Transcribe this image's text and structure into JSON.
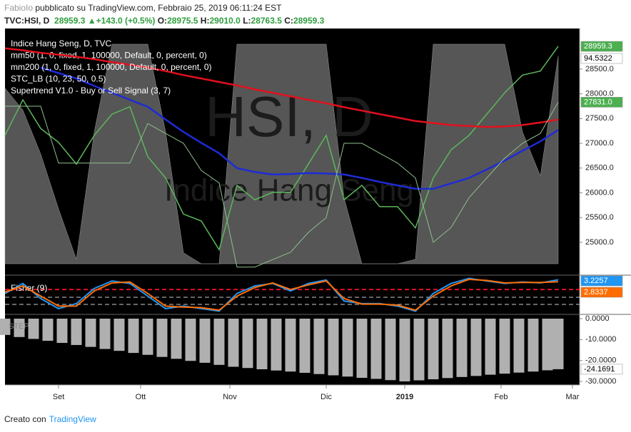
{
  "header": {
    "author": "FabioIo",
    "published": "pubblicato su TradingView.com, Febbraio 25, 2019 06:11:24 EST",
    "symbol": "TVC:HSI, D",
    "last": "28959.3",
    "arrow": "▲",
    "change": "+143.0 (+0.5%)",
    "open_label": "O:",
    "open": "28975.5",
    "high_label": "H:",
    "high": "29010.0",
    "low_label": "L:",
    "low": "28763.5",
    "close_label": "C:",
    "close": "28959.3"
  },
  "footer": {
    "text": "Creato con",
    "link": "TradingView"
  },
  "chart_data": [
    {
      "type": "line",
      "watermark": "HSI, D",
      "watermark_subtitle": "Indice Hang Seng",
      "xlim": [
        0,
        161
      ],
      "ylim": [
        24350,
        29320
      ],
      "stc_ylim": [
        0,
        100
      ],
      "yticks": [
        {
          "value": 25000,
          "label": "25000.0"
        },
        {
          "value": 25500,
          "label": "25500.0"
        },
        {
          "value": 26000,
          "label": "26000.0"
        },
        {
          "value": 26500,
          "label": "26500.0"
        },
        {
          "value": 27000,
          "label": "27000.0"
        },
        {
          "value": 27500,
          "label": "27500.0"
        },
        {
          "value": 28000,
          "label": "28000.0"
        },
        {
          "value": 28500,
          "label": "28500.0"
        }
      ],
      "x": [
        0,
        5,
        10,
        15,
        20,
        25,
        30,
        35,
        40,
        45,
        50,
        55,
        60,
        65,
        70,
        75,
        80,
        85,
        90,
        95,
        100,
        105,
        110,
        115,
        120,
        125,
        130,
        135,
        140,
        145,
        150,
        155
      ],
      "series": [
        {
          "name": "Indice Hang Seng, D, TVC",
          "color": "#5cb85c",
          "tag_color": "#4caf50",
          "width": 1.5,
          "values": [
            27160,
            27880,
            27300,
            27020,
            26580,
            27160,
            27590,
            27740,
            26730,
            26300,
            25570,
            25430,
            24850,
            26150,
            25860,
            26010,
            26010,
            26580,
            27160,
            25860,
            26150,
            25720,
            25720,
            25290,
            26300,
            26870,
            27160,
            27590,
            28020,
            28380,
            28460,
            28959.3
          ]
        },
        {
          "name": "mm50 (1, 0, fixed, 1, 100000, Default, 0, percent, 0)",
          "color": "#1e2bd6",
          "width": 2.5,
          "values": [
            null,
            null,
            28530,
            28420,
            28310,
            28160,
            28020,
            27880,
            27740,
            27480,
            27230,
            27010,
            26800,
            26500,
            26420,
            26370,
            26380,
            26400,
            26390,
            26370,
            26300,
            26220,
            26150,
            26080,
            26080,
            26190,
            26300,
            26470,
            26650,
            26850,
            27040,
            27270
          ]
        },
        {
          "name": "mm200 (1, 0, fixed, 1, 100000, Default, 0, percent, 0)",
          "color": "#e3101d",
          "width": 2.5,
          "values": [
            28920,
            28880,
            28830,
            28790,
            28750,
            28700,
            28640,
            28590,
            28530,
            28460,
            28380,
            28310,
            28240,
            28170,
            28090,
            28020,
            27950,
            27880,
            27810,
            27730,
            27660,
            27590,
            27520,
            27450,
            27410,
            27370,
            27350,
            27330,
            27340,
            27370,
            27420,
            27480
          ]
        },
        {
          "name": "STC_LB (10, 23, 50, 0.5)",
          "axis": "stc",
          "color": "#7a7a7a",
          "tag_color": "#ffffff",
          "values": [
            80,
            70,
            50,
            25,
            2,
            60,
            100,
            100,
            100,
            60,
            5,
            0,
            0,
            100,
            100,
            100,
            100,
            100,
            100,
            30,
            0,
            0,
            0,
            2,
            100,
            100,
            100,
            100,
            100,
            60,
            40,
            94.5322
          ]
        },
        {
          "name": "Supertrend V1.0 - Buy or Sell Signal (3, 7)",
          "color": "#8fbf8f",
          "tag_color": "#4caf50",
          "width": 1,
          "values": [
            27750,
            27750,
            27750,
            26600,
            26600,
            26600,
            26600,
            26600,
            27400,
            27200,
            27000,
            26450,
            26200,
            24500,
            24500,
            24650,
            24800,
            25200,
            25500,
            27000,
            27000,
            26800,
            26600,
            26300,
            25000,
            25300,
            25900,
            26300,
            26700,
            27000,
            27200,
            27831
          ],
          "value_labels": [
            null,
            null,
            null,
            null,
            null,
            null,
            null,
            null,
            null,
            null,
            null,
            null,
            null,
            null,
            null,
            null,
            null,
            null,
            null,
            null,
            null,
            null,
            null,
            null,
            null,
            null,
            null,
            null,
            null,
            null,
            null,
            "27831.0"
          ]
        }
      ]
    },
    {
      "type": "line",
      "xlim": [
        0,
        161
      ],
      "ylim": [
        -3.5,
        4
      ],
      "levels": [
        {
          "value": 1.3,
          "color": "#e3101d"
        },
        {
          "value": -0.25,
          "color": "#cccccc"
        },
        {
          "value": -1.66,
          "color": "#cccccc"
        }
      ],
      "x": [
        0,
        5,
        10,
        15,
        20,
        25,
        30,
        35,
        40,
        45,
        50,
        55,
        60,
        65,
        70,
        75,
        80,
        85,
        90,
        95,
        100,
        105,
        110,
        115,
        120,
        125,
        130,
        135,
        140,
        145,
        150,
        155
      ],
      "series": [
        {
          "name": "Fisher (9)",
          "color": "#2196f3",
          "tag_color": "#2196f3",
          "width": 2,
          "values": [
            0.5,
            2.5,
            -0.5,
            -2.5,
            -1.5,
            1.5,
            3,
            2.5,
            0,
            -2.5,
            -2,
            -2.5,
            -3,
            0.5,
            2,
            2.5,
            1,
            2.5,
            3.2,
            -1,
            -1.5,
            -1.5,
            -2,
            -3,
            0.5,
            2.5,
            3.5,
            3,
            2.5,
            2.8,
            2.6,
            3.2257
          ]
        },
        {
          "color": "#ff6d00",
          "tag_color": "#ff6d00",
          "width": 2,
          "values": [
            0.8,
            2,
            0,
            -2,
            -2,
            1,
            2.6,
            2.8,
            0.5,
            -2,
            -2.2,
            -2.3,
            -2.8,
            0,
            1.7,
            2.6,
            1.3,
            2.2,
            3,
            -0.5,
            -1.6,
            -1.6,
            -1.8,
            -2.8,
            0,
            2,
            3.3,
            3.1,
            2.6,
            2.7,
            2.7,
            2.8337
          ]
        }
      ]
    },
    {
      "type": "bar",
      "name": "STEP",
      "color": "#b0b0b0",
      "tag_color": "#ffffff",
      "xlim": [
        0,
        161
      ],
      "ylim": [
        -31.7,
        1.7
      ],
      "yticks": [
        {
          "value": 0,
          "label": "0.0000"
        },
        {
          "value": -10,
          "label": "-10.0000"
        },
        {
          "value": -20,
          "label": "-20.0000"
        },
        {
          "value": -30,
          "label": "-30.0000"
        }
      ],
      "xticks": [
        {
          "value": 15,
          "label": "Set"
        },
        {
          "value": 38,
          "label": "Ott"
        },
        {
          "value": 63,
          "label": "Nov"
        },
        {
          "value": 90,
          "label": "Dic"
        },
        {
          "value": 112,
          "label": "2019"
        },
        {
          "value": 139,
          "label": "Feb"
        },
        {
          "value": 159,
          "label": "Mar"
        }
      ],
      "x": [
        0,
        4,
        8,
        12,
        16,
        20,
        24,
        28,
        32,
        36,
        40,
        44,
        48,
        52,
        56,
        60,
        64,
        68,
        72,
        76,
        80,
        84,
        88,
        92,
        96,
        100,
        104,
        108,
        112,
        116,
        120,
        124,
        128,
        132,
        136,
        140,
        144,
        148,
        152,
        155
      ],
      "values": [
        -7.8,
        -8.8,
        -9.7,
        -10.6,
        -11.6,
        -12.6,
        -13.5,
        -14.5,
        -15.4,
        -16.4,
        -17.3,
        -18.3,
        -19.2,
        -20.2,
        -21.1,
        -22.1,
        -23.0,
        -23.6,
        -24.2,
        -24.8,
        -25.3,
        -25.9,
        -26.5,
        -27.1,
        -27.7,
        -28.3,
        -28.8,
        -29.4,
        -30.0,
        -29.5,
        -29.0,
        -28.4,
        -27.9,
        -27.4,
        -26.8,
        -26.3,
        -25.8,
        -25.3,
        -24.7,
        -24.1691
      ]
    }
  ]
}
